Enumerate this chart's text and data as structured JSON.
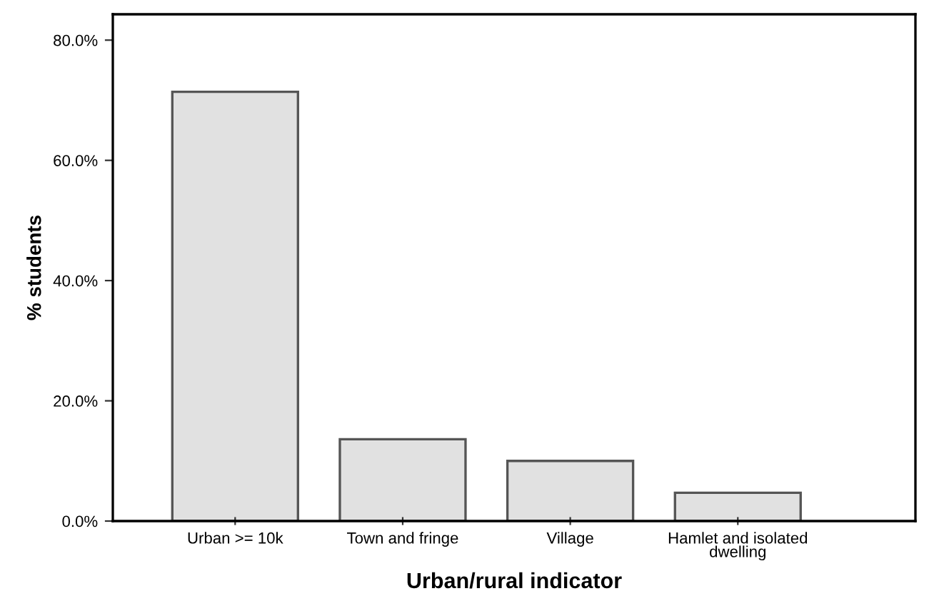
{
  "chart_data": {
    "type": "bar",
    "xlabel": "Urban/rural indicator",
    "ylabel": "% students",
    "categories": [
      "Urban >= 10k",
      "Town and fringe",
      "Village",
      "Hamlet and isolated\ndwelling"
    ],
    "values": [
      71.4,
      13.6,
      10.0,
      4.7
    ],
    "color": "#e1e1e1",
    "ylim": [
      0,
      84.3
    ],
    "yticks": [
      {
        "value": 0,
        "label": "0.0%"
      },
      {
        "value": 20,
        "label": "20.0%"
      },
      {
        "value": 40,
        "label": "40.0%"
      },
      {
        "value": 60,
        "label": "60.0%"
      },
      {
        "value": 80,
        "label": "80.0%"
      }
    ],
    "grid": false,
    "legend": false
  }
}
